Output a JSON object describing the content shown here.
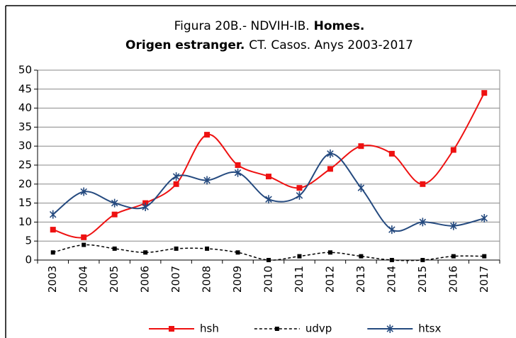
{
  "chart_data": {
    "type": "line",
    "title_lines": [
      [
        {
          "text": "Figura 20B.- NDVIH-IB.",
          "bold": false
        },
        {
          "text": "Homes.",
          "bold": true
        }
      ],
      [
        {
          "text": "Origen estranger.",
          "bold": true
        },
        {
          "text": "CT.  Casos. Anys 2003-2017",
          "bold": false
        }
      ]
    ],
    "categories": [
      "2003",
      "2004",
      "2005",
      "2006",
      "2007",
      "2008",
      "2009",
      "2010",
      "2011",
      "2012",
      "2013",
      "2014",
      "2015",
      "2016",
      "2017"
    ],
    "series": [
      {
        "name": "hsh",
        "color": "#ee1111",
        "marker": "square",
        "dash": false,
        "values": [
          8,
          6,
          12,
          15,
          20,
          33,
          25,
          22,
          19,
          24,
          30,
          28,
          20,
          29,
          44
        ]
      },
      {
        "name": "udvp",
        "color": "#000000",
        "marker": "small-square",
        "dash": true,
        "values": [
          2,
          4,
          3,
          2,
          3,
          3,
          2,
          0,
          1,
          2,
          1,
          0,
          0,
          1,
          1
        ]
      },
      {
        "name": "htsx",
        "color": "#254a7f",
        "marker": "asterisk",
        "dash": false,
        "values": [
          12,
          18,
          15,
          14,
          22,
          21,
          23,
          16,
          17,
          28,
          19,
          8,
          10,
          9,
          11
        ]
      }
    ],
    "ylim": [
      0,
      50
    ],
    "yticks": [
      0,
      5,
      10,
      15,
      20,
      25,
      30,
      35,
      40,
      45,
      50
    ],
    "grid": true,
    "smooth": true,
    "legend": "bottom"
  }
}
